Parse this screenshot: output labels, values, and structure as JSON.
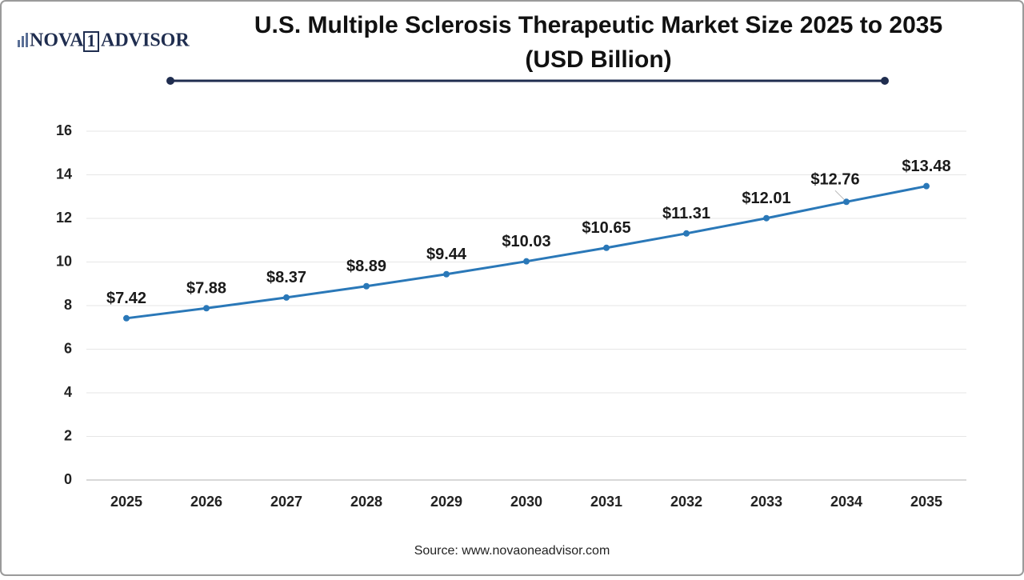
{
  "logo": {
    "left": "NOVA",
    "mark": "1",
    "right": "ADVISOR"
  },
  "chart_data": {
    "type": "line",
    "title": [
      "U.S. Multiple Sclerosis Therapeutic Market Size 2025 to 2035",
      "(USD Billion)"
    ],
    "categories": [
      "2025",
      "2026",
      "2027",
      "2028",
      "2029",
      "2030",
      "2031",
      "2032",
      "2033",
      "2034",
      "2035"
    ],
    "values": [
      7.42,
      7.88,
      8.37,
      8.89,
      9.44,
      10.03,
      10.65,
      11.31,
      12.01,
      12.76,
      13.48
    ],
    "value_labels": [
      "$7.42",
      "$7.88",
      "$8.37",
      "$8.89",
      "$9.44",
      "$10.03",
      "$10.65",
      "$11.31",
      "$12.01",
      "$12.76",
      "$13.48"
    ],
    "color": "#2a78b8",
    "ylim": [
      0,
      16
    ],
    "yticks": [
      0,
      2,
      4,
      6,
      8,
      10,
      12,
      14,
      16
    ],
    "grid": true
  },
  "source": "Source: www.novaoneadvisor.com"
}
